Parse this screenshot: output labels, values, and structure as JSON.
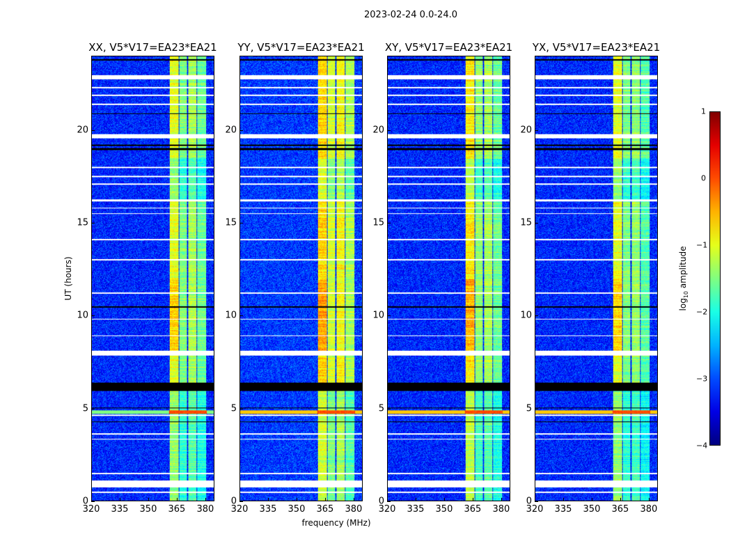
{
  "chart_data": {
    "type": "heatmap",
    "title": "2023-02-24 0.0-24.0",
    "xlabel": "frequency (MHz)",
    "ylabel": "UT (hours)",
    "xlim": [
      320,
      384.8
    ],
    "ylim": [
      0,
      24
    ],
    "xticks": [
      "320",
      "335",
      "350",
      "365",
      "380"
    ],
    "xtick_values": [
      320,
      335,
      350,
      365,
      380
    ],
    "yticks": [
      "0",
      "5",
      "10",
      "15",
      "20"
    ],
    "ytick_values": [
      0,
      5,
      10,
      15,
      20
    ],
    "panels": [
      {
        "title": "XX, V5*V17=EA23*EA21",
        "band_level": [
          -1.0,
          -1.5,
          -1.3,
          -1.6
        ],
        "background": -3.2
      },
      {
        "title": "YY, V5*V17=EA23*EA21",
        "band_level": [
          -0.7,
          -1.1,
          -0.9,
          -1.3
        ],
        "background": -3.1
      },
      {
        "title": "XY, V5*V17=EA23*EA21",
        "band_level": [
          -0.8,
          -1.4,
          -1.3,
          -1.6
        ],
        "background": -3.2
      },
      {
        "title": "YX, V5*V17=EA23*EA21",
        "band_level": [
          -1.0,
          -1.5,
          -1.4,
          -1.7
        ],
        "background": -3.2
      }
    ],
    "band_channels_MHz": [
      [
        361.3,
        366.0
      ],
      [
        366.3,
        370.3
      ],
      [
        370.9,
        375.6
      ],
      [
        376.0,
        380.7
      ]
    ],
    "flagged_white_hours": [
      [
        0.75,
        1.1
      ],
      [
        0.45,
        0.5
      ],
      [
        1.45,
        1.5
      ],
      [
        3.3,
        3.35
      ],
      [
        3.6,
        3.65
      ],
      [
        4.6,
        4.65
      ],
      [
        7.85,
        8.12
      ],
      [
        8.9,
        8.93
      ],
      [
        9.8,
        9.85
      ],
      [
        11.2,
        11.25
      ],
      [
        13.0,
        13.05
      ],
      [
        14.1,
        14.15
      ],
      [
        15.5,
        15.55
      ],
      [
        15.8,
        15.85
      ],
      [
        16.2,
        16.3
      ],
      [
        17.1,
        17.15
      ],
      [
        17.5,
        17.55
      ],
      [
        18.0,
        18.05
      ],
      [
        19.6,
        19.8
      ],
      [
        21.4,
        21.45
      ],
      [
        21.9,
        21.95
      ],
      [
        22.3,
        22.35
      ],
      [
        22.8,
        23.0
      ]
    ],
    "flagged_black_hours": [
      [
        5.95,
        6.4
      ],
      [
        4.25,
        4.3
      ],
      [
        5.0,
        5.05
      ],
      [
        10.45,
        10.5
      ],
      [
        18.95,
        19.05
      ],
      [
        19.2,
        19.25
      ],
      [
        20.9,
        20.95
      ],
      [
        23.8,
        23.85
      ]
    ],
    "rfi_event": {
      "hours": [
        4.7,
        4.9
      ],
      "level": 0.0
    },
    "colorbar": {
      "label": "log10 amplitude",
      "label_base": "log",
      "label_sub": "10",
      "label_rest": " amplitude",
      "range": [
        -4,
        1
      ],
      "ticks": [
        "1",
        "0",
        "−1",
        "−2",
        "−3",
        "−4"
      ],
      "tick_values": [
        1,
        0,
        -1,
        -2,
        -3,
        -4
      ],
      "colormap": "jet"
    }
  }
}
